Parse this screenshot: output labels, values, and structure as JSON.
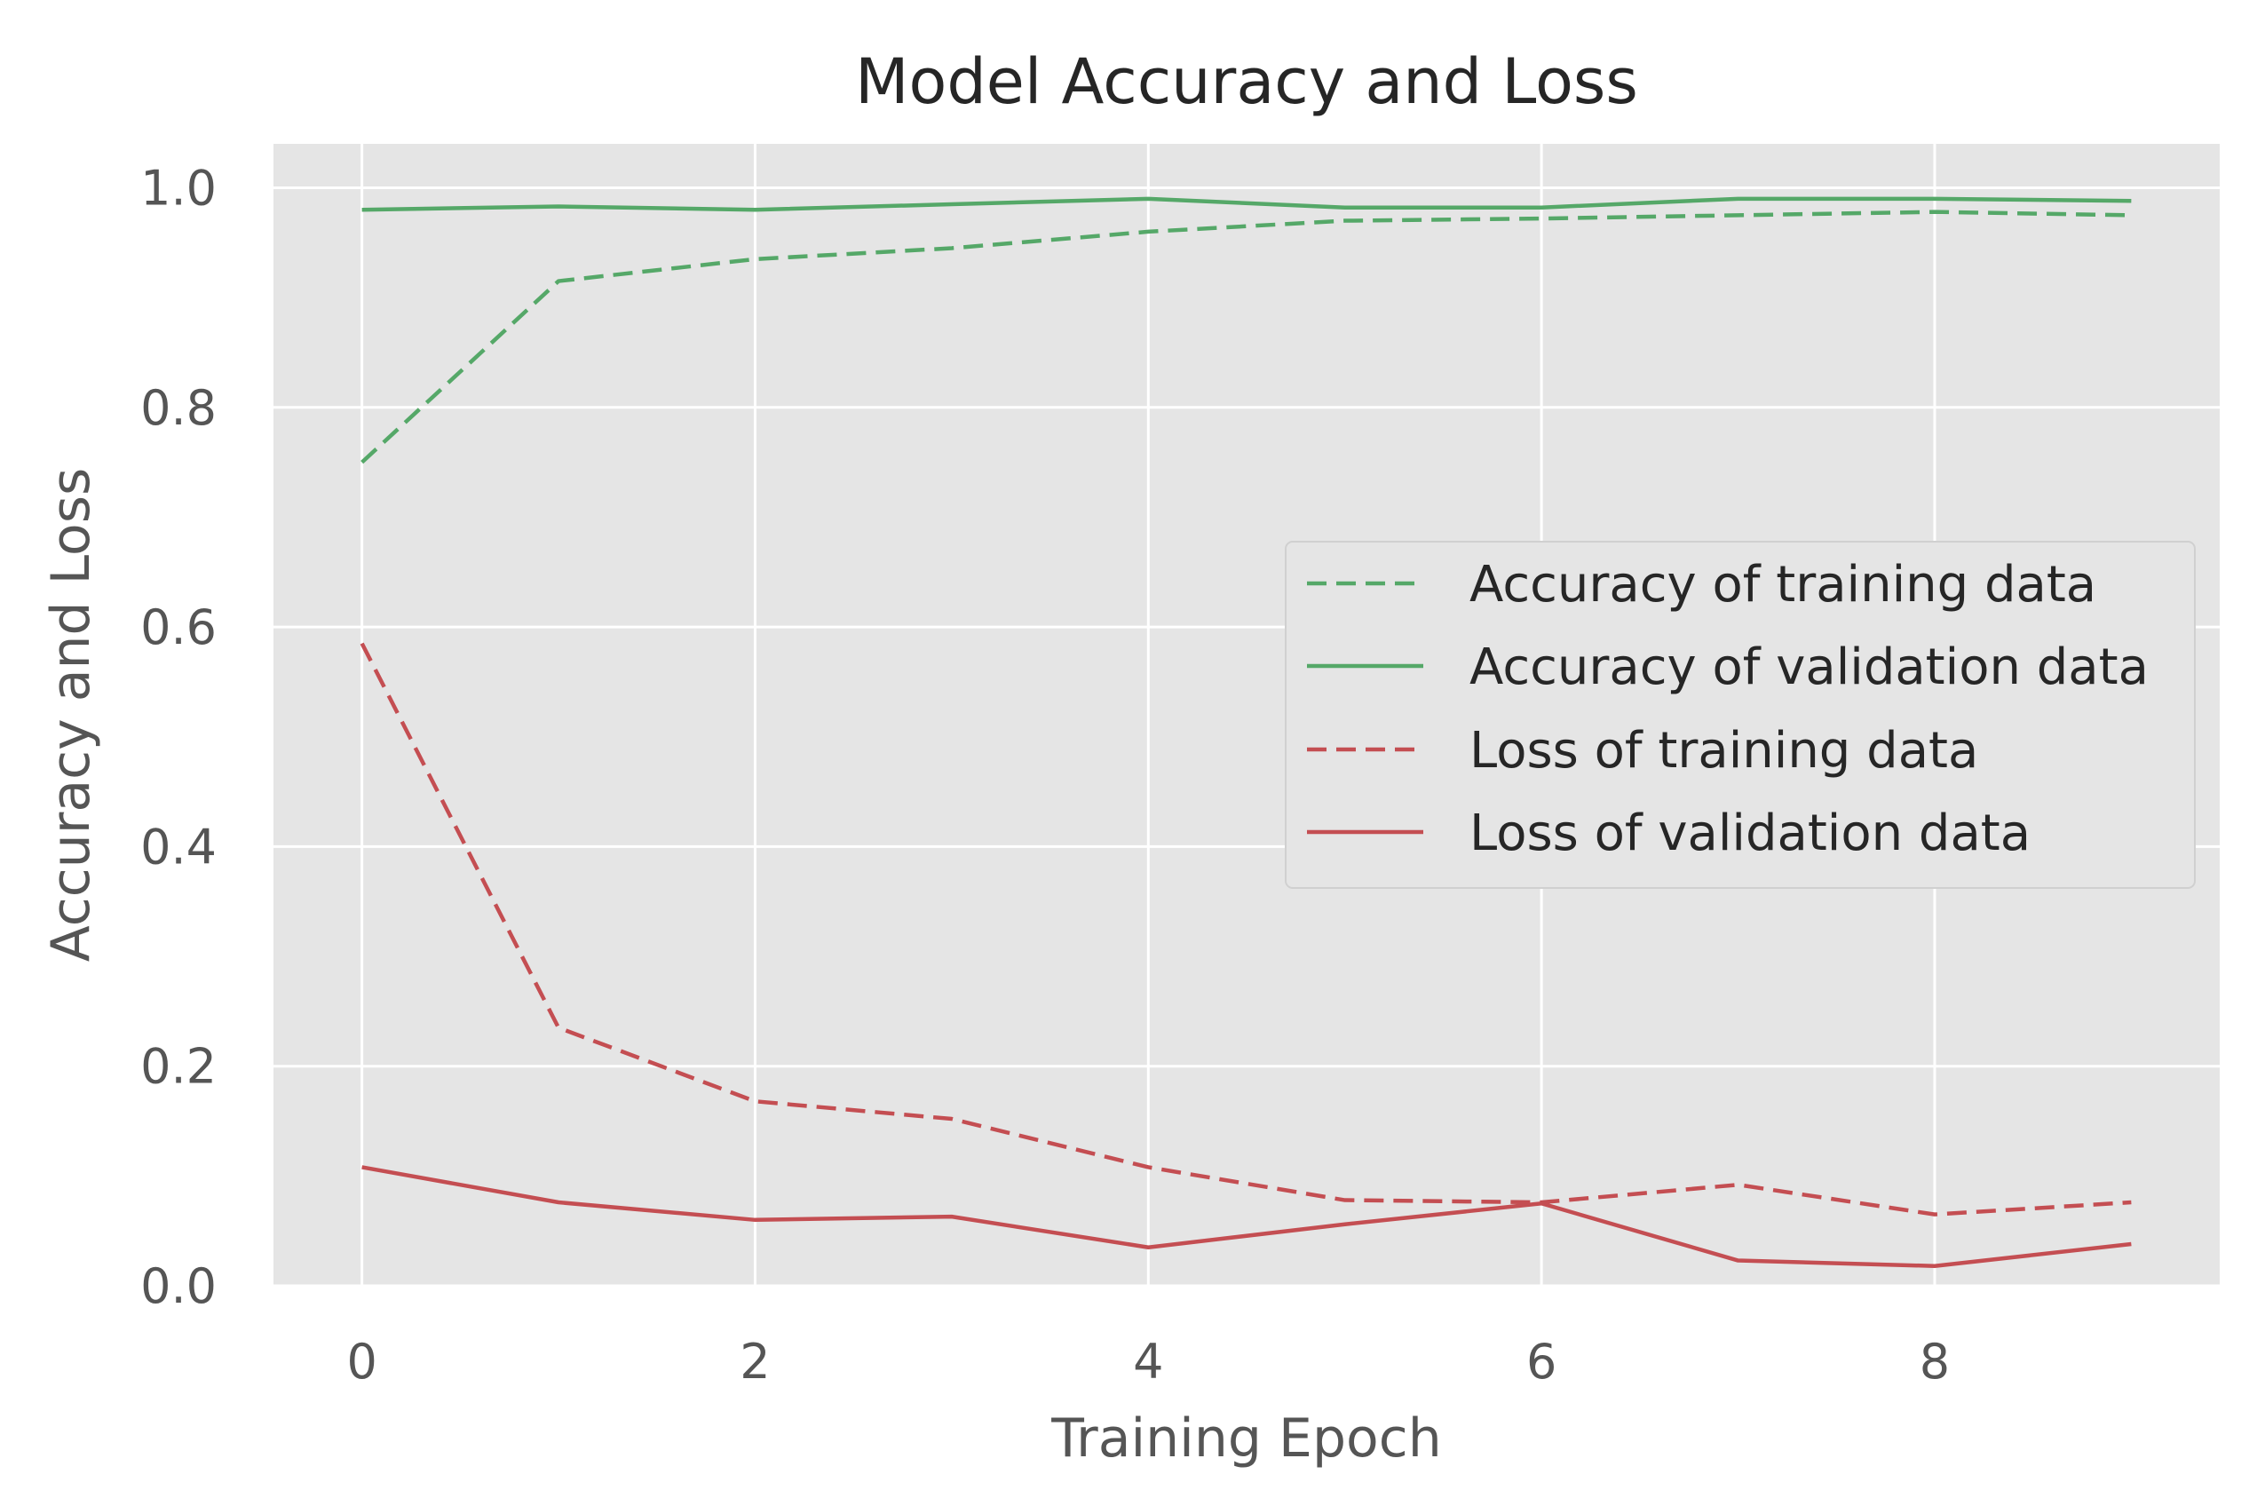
{
  "chart_data": {
    "type": "line",
    "title": "Model Accuracy and Loss",
    "xlabel": "Training Epoch",
    "ylabel": "Accuracy and Loss",
    "xlim": [
      -0.45,
      9.45
    ],
    "ylim": [
      0.0,
      1.04
    ],
    "x_ticks": [
      0,
      2,
      4,
      6,
      8
    ],
    "y_ticks": [
      0.0,
      0.2,
      0.4,
      0.6,
      0.8,
      1.0
    ],
    "grid": true,
    "legend_position": "center-right",
    "x": [
      0,
      1,
      2,
      3,
      4,
      5,
      6,
      7,
      8,
      9
    ],
    "series": [
      {
        "name": "Accuracy of training data",
        "color": "#55a868",
        "style": "dashed",
        "values": [
          0.75,
          0.915,
          0.935,
          0.945,
          0.96,
          0.97,
          0.972,
          0.975,
          0.978,
          0.975
        ]
      },
      {
        "name": "Accuracy of validation data",
        "color": "#55a868",
        "style": "solid",
        "values": [
          0.98,
          0.983,
          0.98,
          0.985,
          0.99,
          0.982,
          0.982,
          0.99,
          0.99,
          0.988
        ]
      },
      {
        "name": "Loss of training data",
        "color": "#c44e52",
        "style": "dashed",
        "values": [
          0.585,
          0.235,
          0.168,
          0.152,
          0.108,
          0.078,
          0.076,
          0.092,
          0.065,
          0.076
        ]
      },
      {
        "name": "Loss of validation data",
        "color": "#c44e52",
        "style": "solid",
        "values": [
          0.108,
          0.076,
          0.06,
          0.063,
          0.035,
          0.056,
          0.075,
          0.023,
          0.018,
          0.038
        ]
      }
    ]
  }
}
